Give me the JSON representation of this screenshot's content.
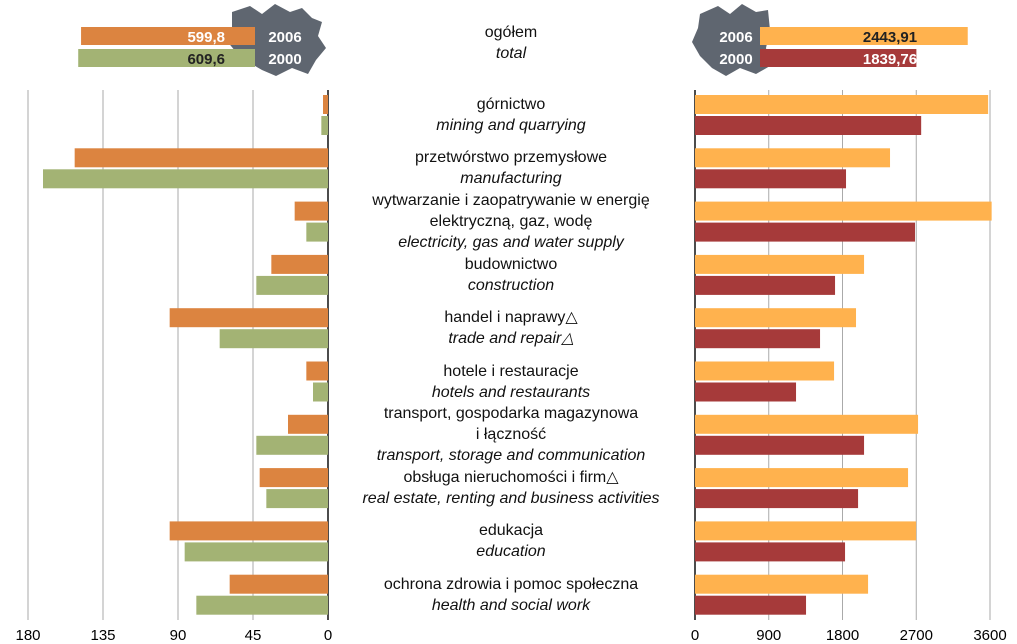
{
  "total": {
    "pl": "ogółem",
    "en": "total"
  },
  "categories": [
    "górnictwo",
    "przetwórstwo przemysłowe",
    "wytwarzanie i zaopatrywanie w energię\nelektryczną, gaz, wodę",
    "budownictwo",
    "handel i naprawy△",
    "hotele i restauracje",
    "transport, gospodarka magazynowa\ni łączność",
    "obsługa nieruchomości i firm△",
    "edukacja",
    "ochrona zdrowia i pomoc społeczna"
  ],
  "categories_en": [
    "mining and quarrying",
    "manufacturing",
    "electricity, gas and water supply",
    "construction",
    "trade and repair△",
    "hotels and restaurants",
    "transport, storage and communication",
    "real estate, renting and business activities",
    "education",
    "health and social work"
  ],
  "chart_data": [
    {
      "type": "bar",
      "orientation": "horizontal",
      "x_reversed": true,
      "grid": true,
      "xlim": [
        0,
        180
      ],
      "xticks": [
        0,
        45,
        90,
        135,
        180
      ],
      "series": [
        {
          "name": "2006",
          "color": "#dc8440",
          "values": [
            3,
            152,
            20,
            34,
            95,
            13,
            24,
            41,
            95,
            59
          ],
          "total": 599.8,
          "total_label": "599,8"
        },
        {
          "name": "2000",
          "color": "#a3b374",
          "values": [
            4,
            171,
            13,
            43,
            65,
            9,
            43,
            37,
            86,
            79
          ],
          "total": 609.6,
          "total_label": "609,6"
        }
      ]
    },
    {
      "type": "bar",
      "orientation": "horizontal",
      "x_reversed": false,
      "grid": true,
      "xlim": [
        0,
        3600
      ],
      "xticks": [
        0,
        900,
        1800,
        2700,
        3600
      ],
      "series": [
        {
          "name": "2006",
          "color": "#ffb24e",
          "values": [
            3577,
            2380,
            3620,
            2063,
            1965,
            1697,
            2722,
            2600,
            2698,
            2112
          ],
          "total": 2443.91,
          "total_label": "2443,91"
        },
        {
          "name": "2000",
          "color": "#a63a3a",
          "values": [
            2760,
            1843,
            2685,
            1709,
            1526,
            1233,
            2063,
            1990,
            1831,
            1355
          ],
          "total": 1839.76,
          "total_label": "1839,76"
        }
      ]
    }
  ]
}
